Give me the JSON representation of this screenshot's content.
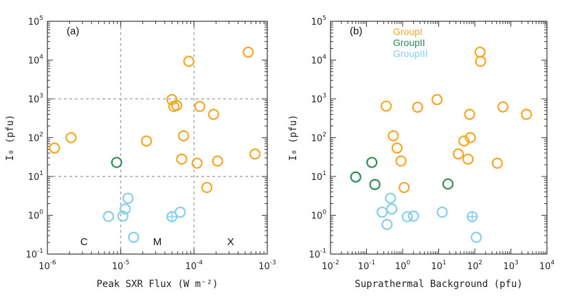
{
  "chart_data": [
    {
      "type": "scatter",
      "panel_label": "(a)",
      "xscale": "log",
      "yscale": "log",
      "xlim_exp": [
        -6,
        -3
      ],
      "ylim_exp": [
        -1,
        5
      ],
      "xlabel": "Peak SXR Flux (W m⁻²)",
      "ylabel": "I₀ (pfu)",
      "x_ticks": [
        {
          "mant": "10",
          "exp": "-6"
        },
        {
          "mant": "10",
          "exp": "-5"
        },
        {
          "mant": "10",
          "exp": "-4"
        },
        {
          "mant": "10",
          "exp": "-3"
        }
      ],
      "y_ticks": [
        {
          "mant": "10",
          "exp": "-1"
        },
        {
          "mant": "10",
          "exp": "0"
        },
        {
          "mant": "10",
          "exp": "1"
        },
        {
          "mant": "10",
          "exp": "2"
        },
        {
          "mant": "10",
          "exp": "3"
        },
        {
          "mant": "10",
          "exp": "4"
        },
        {
          "mant": "10",
          "exp": "5"
        }
      ],
      "vlines": [
        1e-05,
        0.0001
      ],
      "hlines": [
        10,
        1000
      ],
      "regions": [
        "C",
        "M",
        "X"
      ],
      "series": [
        {
          "name": "GroupI",
          "color": "#f5a623",
          "points": [
            [
              1.25e-06,
              54
            ],
            [
              2.1e-06,
              100
            ],
            [
              2.25e-05,
              82
            ],
            [
              5e-05,
              960
            ],
            [
              5.3e-05,
              640
            ],
            [
              5.8e-05,
              680
            ],
            [
              6.8e-05,
              28
            ],
            [
              7.2e-05,
              112
            ],
            [
              8.5e-05,
              9300
            ],
            [
              0.00011,
              22
            ],
            [
              0.00012,
              640
            ],
            [
              0.00015,
              5.2
            ],
            [
              0.000185,
              400
            ],
            [
              0.00021,
              25
            ],
            [
              0.00055,
              16000
            ],
            [
              0.00068,
              38
            ]
          ]
        },
        {
          "name": "GroupII",
          "color": "#2e8b57",
          "points": [
            [
              8.8e-06,
              23
            ]
          ]
        },
        {
          "name": "GroupIII",
          "color": "#87ceeb",
          "points": [
            [
              6.8e-06,
              0.93
            ],
            [
              1.07e-05,
              0.95
            ],
            [
              1.15e-05,
              1.45
            ],
            [
              1.26e-05,
              2.75
            ],
            [
              1.5e-05,
              0.27
            ],
            [
              5e-05,
              0.92,
              "plus"
            ],
            [
              6.5e-05,
              1.2
            ]
          ]
        }
      ]
    },
    {
      "type": "scatter",
      "panel_label": "(b)",
      "xscale": "log",
      "yscale": "log",
      "xlim_exp": [
        -2,
        4
      ],
      "ylim_exp": [
        -1,
        5
      ],
      "xlabel": "Suprathermal Background (pfu)",
      "ylabel": "I₀ (pfu)",
      "legend": [
        "GroupI",
        "GroupII",
        "GroupIII"
      ],
      "legend_position": "top-left",
      "x_ticks": [
        {
          "mant": "10",
          "exp": "-2"
        },
        {
          "mant": "10",
          "exp": "-1"
        },
        {
          "mant": "10",
          "exp": "0"
        },
        {
          "mant": "10",
          "exp": "1"
        },
        {
          "mant": "10",
          "exp": "2"
        },
        {
          "mant": "10",
          "exp": "3"
        },
        {
          "mant": "10",
          "exp": "4"
        }
      ],
      "y_ticks": [
        {
          "mant": "10",
          "exp": "-1"
        },
        {
          "mant": "10",
          "exp": "0"
        },
        {
          "mant": "10",
          "exp": "1"
        },
        {
          "mant": "10",
          "exp": "2"
        },
        {
          "mant": "10",
          "exp": "3"
        },
        {
          "mant": "10",
          "exp": "4"
        },
        {
          "mant": "10",
          "exp": "5"
        }
      ],
      "series": [
        {
          "name": "GroupI",
          "color": "#f5a623",
          "points": [
            [
              0.35,
              650
            ],
            [
              0.55,
              112
            ],
            [
              0.7,
              54
            ],
            [
              0.9,
              25
            ],
            [
              1.1,
              5.2
            ],
            [
              2.6,
              610
            ],
            [
              9.0,
              960
            ],
            [
              35,
              38
            ],
            [
              50,
              82
            ],
            [
              65,
              28
            ],
            [
              72,
              400
            ],
            [
              75,
              100
            ],
            [
              140,
              16000
            ],
            [
              145,
              9300
            ],
            [
              420,
              22
            ],
            [
              600,
              620
            ],
            [
              2700,
              400
            ]
          ]
        },
        {
          "name": "GroupII",
          "color": "#2e8b57",
          "points": [
            [
              0.05,
              9.7
            ],
            [
              0.14,
              23
            ],
            [
              0.17,
              6.2
            ],
            [
              18,
              6.4
            ]
          ]
        },
        {
          "name": "GroupIII",
          "color": "#87ceeb",
          "points": [
            [
              0.27,
              1.2
            ],
            [
              0.37,
              0.58
            ],
            [
              0.46,
              2.75
            ],
            [
              0.5,
              1.45
            ],
            [
              1.35,
              0.92
            ],
            [
              2.0,
              0.95
            ],
            [
              12.5,
              1.2
            ],
            [
              85,
              0.92,
              "plus"
            ],
            [
              110,
              0.27
            ]
          ]
        }
      ]
    }
  ]
}
